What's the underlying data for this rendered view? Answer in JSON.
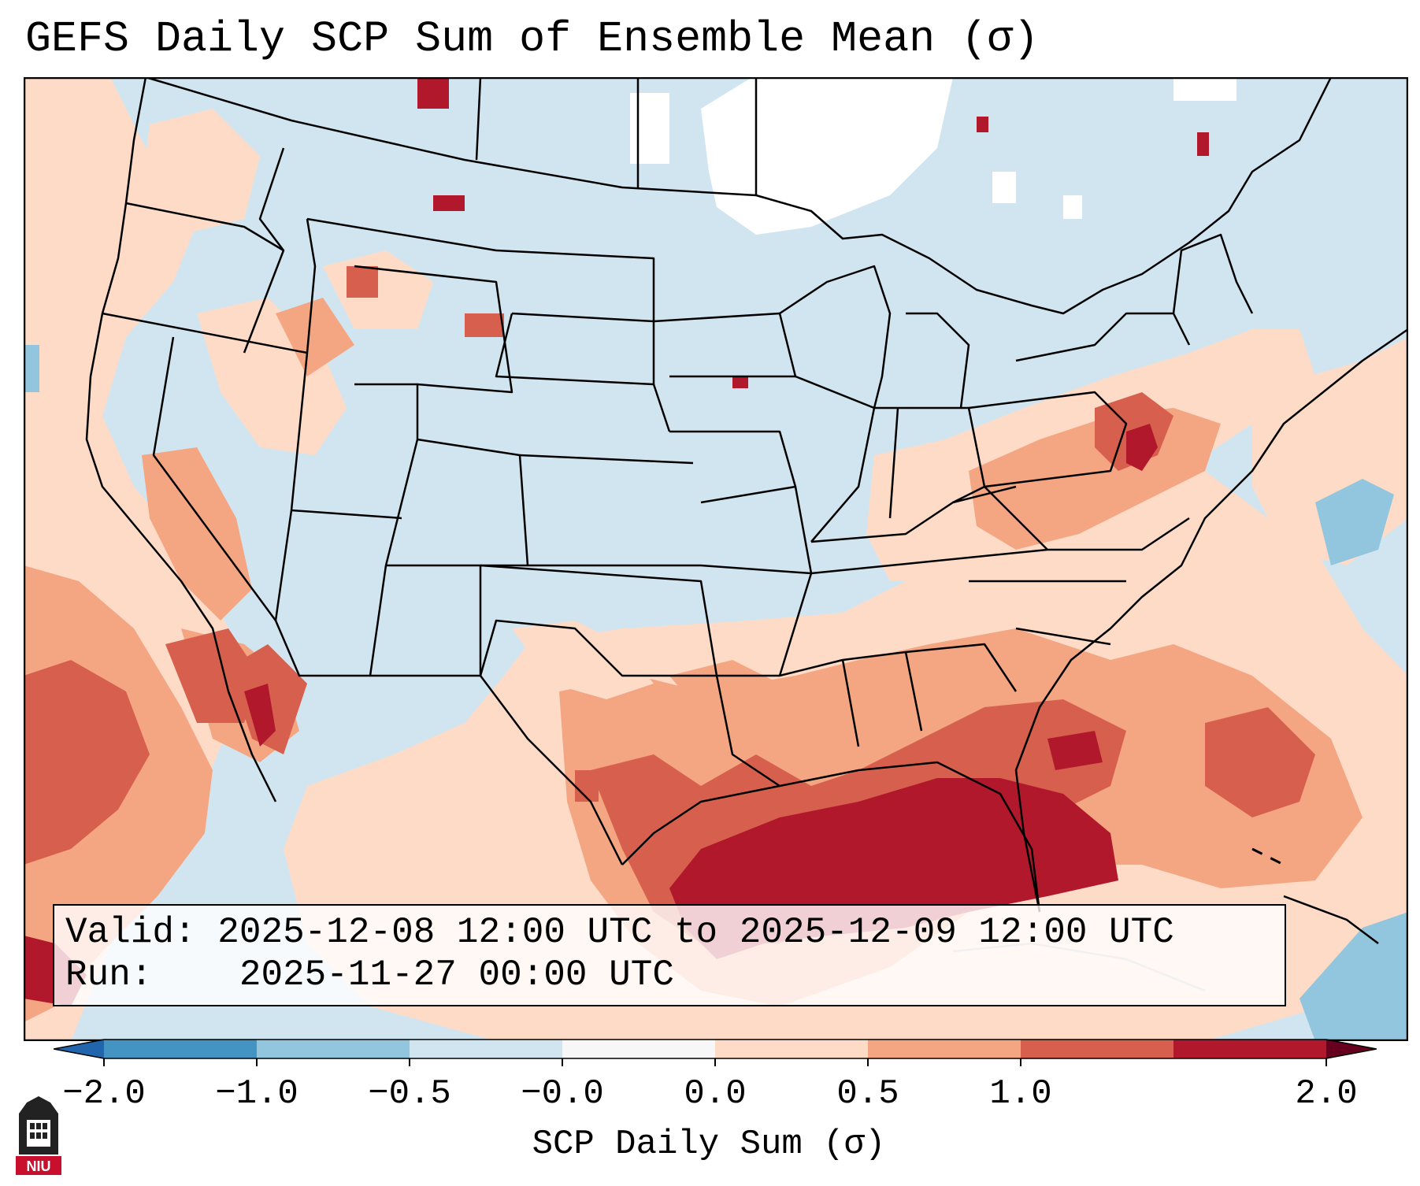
{
  "title": "GEFS Daily SCP Sum of Ensemble Mean (σ)",
  "info": {
    "valid_label": "Valid:",
    "valid_value": "2025-12-08 12:00 UTC to 2025-12-09 12:00 UTC",
    "run_label": "Run:",
    "run_value": "2025-11-27 00:00 UTC"
  },
  "colorbar": {
    "label": "SCP Daily Sum (σ)",
    "ticks": [
      "−2.0",
      "−1.0",
      "−0.5",
      "−0.0",
      "0.0",
      "0.5",
      "1.0",
      "2.0"
    ],
    "colors": [
      "#4393c3",
      "#92c5de",
      "#d1e5f0",
      "#f7f7f7",
      "#fddbc7",
      "#f4a582",
      "#d6604d",
      "#b2182b"
    ],
    "extend": "both"
  },
  "logo": {
    "text": "NIU",
    "color": "#c8102e"
  },
  "map_regions": {
    "background": "#d1e5f0",
    "no_data": "#ffffff",
    "level_0": "#fddbc7",
    "level_05": "#f4a582",
    "level_1": "#d6604d",
    "level_2": "#b2182b",
    "weak_negative": "#92c5de"
  }
}
